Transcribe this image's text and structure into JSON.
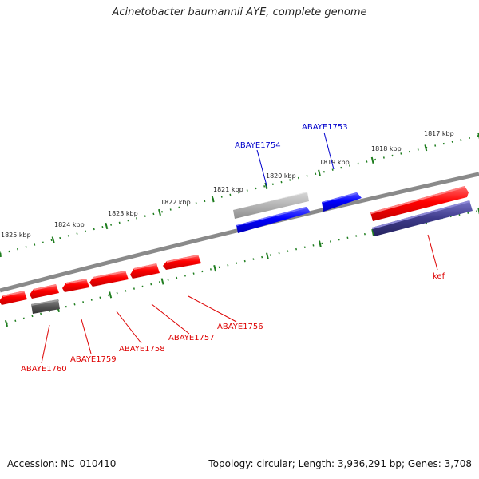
{
  "title": "Acinetobacter baumannii AYE, complete genome",
  "footer": {
    "accession": "Accession: NC_010410",
    "stats": "Topology: circular; Length: 3,936,291 bp; Genes: 3,708"
  },
  "colors": {
    "backbone": "#7a7a7a",
    "tick": "#1e7d1e",
    "forward_gene": "#ff0000",
    "reverse_gene": "#0000ff",
    "pseudo_gene": "#b5b5b5",
    "dark_gene": "#555555",
    "purple_gene": "#3d3a8a",
    "label_red": "#dd0000",
    "label_blue": "#0000cc"
  },
  "scale": {
    "outer_labels": [
      "1817 kbp",
      "1818 kbp",
      "1819 kbp",
      "1820 kbp",
      "1821 kbp",
      "1822 kbp",
      "1823 kbp",
      "1824 kbp",
      "1825 kbp"
    ]
  },
  "genes": {
    "labels": [
      {
        "name": "ABAYE1753",
        "color": "blue"
      },
      {
        "name": "ABAYE1754",
        "color": "blue"
      },
      {
        "name": "kef",
        "color": "red"
      },
      {
        "name": "ABAYE1756",
        "color": "red"
      },
      {
        "name": "ABAYE1757",
        "color": "red"
      },
      {
        "name": "ABAYE1758",
        "color": "red"
      },
      {
        "name": "ABAYE1759",
        "color": "red"
      },
      {
        "name": "ABAYE1760",
        "color": "red"
      }
    ]
  }
}
